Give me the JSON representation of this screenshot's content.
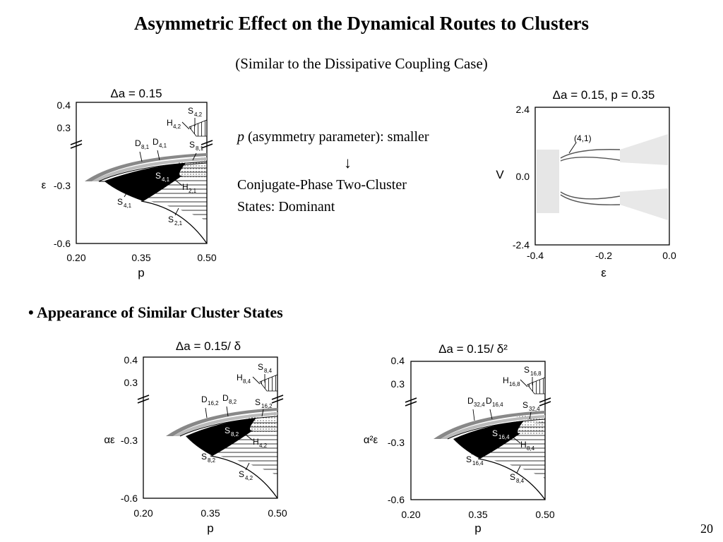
{
  "title": "Asymmetric Effect on the Dynamical Routes to Clusters",
  "subtitle": "(Similar to the Dissipative Coupling Case)",
  "note": {
    "line1_var": "p",
    "line1_rest": " (asymmetry parameter): smaller",
    "arrow": "↓",
    "line2": "Conjugate-Phase Two-Cluster",
    "line3": "States: Dominant"
  },
  "section_bullet": "•",
  "section_heading": "Appearance of Similar Cluster States",
  "page_number": "20",
  "figures": {
    "top_left": {
      "caption": "Δa = 0.15",
      "xlabel": "p",
      "ylabel": "ε",
      "xticks": [
        "0.20",
        "0.35",
        "0.50"
      ],
      "yticks": [
        "0.4",
        "0.3",
        "-0.3",
        "-0.6"
      ],
      "labels": {
        "D1": "D",
        "D1s": "8,1",
        "D2": "D",
        "D2s": "4,1",
        "Sin": "S",
        "Sins": "4,1",
        "H": "H",
        "Hs": "2,1",
        "Sbl": "S",
        "Sbls": "4,1",
        "Sbr": "S",
        "Sbrs": "2,1",
        "Sr": "S",
        "Srs": "8,1",
        "Ht": "H",
        "Hts": "4,2",
        "St": "S",
        "Sts": "4,2"
      }
    },
    "top_right": {
      "caption": "Δa = 0.15, p = 0.35",
      "xlabel": "ε",
      "ylabel": "V",
      "xticks": [
        "-0.4",
        "-0.2",
        "0.0"
      ],
      "yticks": [
        "2.4",
        "0.0",
        "-2.4"
      ],
      "annotation": "(4,1)"
    },
    "bottom_left": {
      "caption": "Δa = 0.15/ δ",
      "xlabel": "p",
      "ylabel": "αε",
      "xticks": [
        "0.20",
        "0.35",
        "0.50"
      ],
      "yticks": [
        "0.4",
        "0.3",
        "-0.3",
        "-0.6"
      ],
      "labels": {
        "D1": "D",
        "D1s": "16,2",
        "D2": "D",
        "D2s": "8,2",
        "Sin": "S",
        "Sins": "8,2",
        "H": "H",
        "Hs": "4,2",
        "Sbl": "S",
        "Sbls": "8,2",
        "Sbr": "S",
        "Sbrs": "4,2",
        "Sr": "S",
        "Srs": "16,2",
        "Ht": "H",
        "Hts": "8,4",
        "St": "S",
        "Sts": "8,4"
      }
    },
    "bottom_right": {
      "caption": "Δa = 0.15/ δ²",
      "xlabel": "p",
      "ylabel": "α²ε",
      "xticks": [
        "0.20",
        "0.35",
        "0.50"
      ],
      "yticks": [
        "0.4",
        "0.3",
        "-0.3",
        "-0.6"
      ],
      "labels": {
        "D1": "D",
        "D1s": "32,4",
        "D2": "D",
        "D2s": "16,4",
        "Sin": "S",
        "Sins": "16,4",
        "H": "H",
        "Hs": "8,4",
        "Sbl": "S",
        "Sbls": "16,4",
        "Sbr": "S",
        "Sbrs": "8,4",
        "Sr": "S",
        "Srs": "32,4",
        "Ht": "H",
        "Hts": "16,8",
        "St": "S",
        "Sts": "16,8"
      }
    }
  }
}
